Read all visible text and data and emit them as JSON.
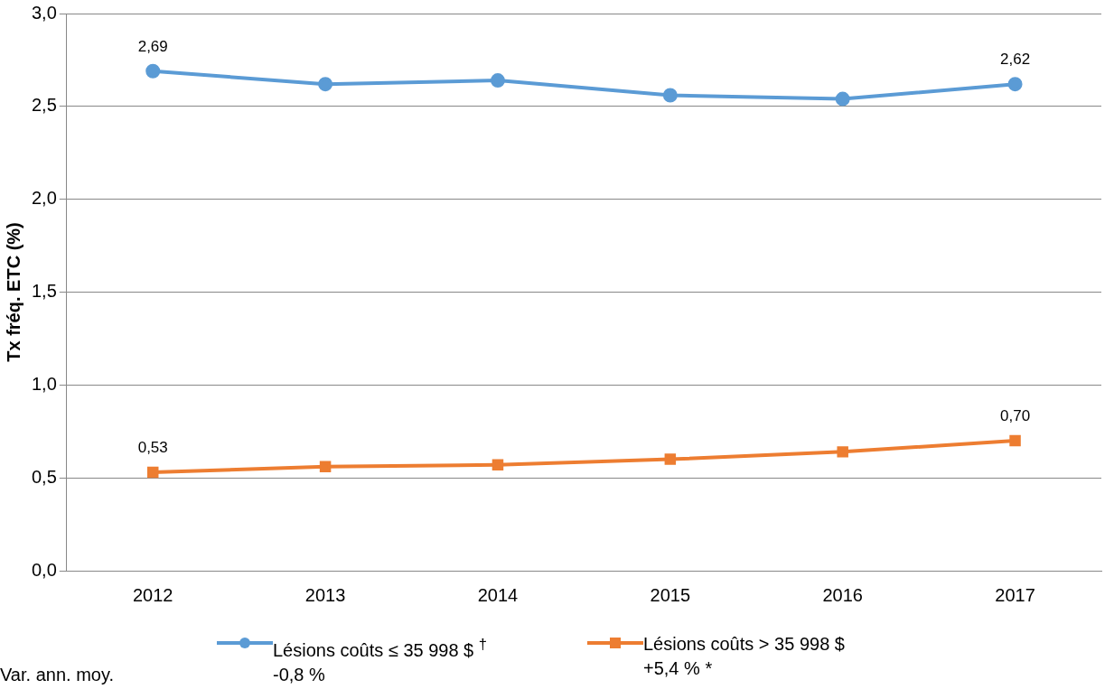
{
  "chart_data": {
    "type": "line",
    "ylabel": "Tx fréq. ETC (%)",
    "categories": [
      "2012",
      "2013",
      "2014",
      "2015",
      "2016",
      "2017"
    ],
    "series": [
      {
        "name": "Lésions coûts ≤ 35 998 $ $^{†}$\n-0,8 %",
        "color": "#5b9bd5",
        "marker": "circle",
        "values": [
          2.69,
          2.62,
          2.64,
          2.56,
          2.54,
          2.62
        ],
        "value_labels": [
          "2,69",
          null,
          null,
          null,
          null,
          "2,62"
        ]
      },
      {
        "name": "Lésions coûts > 35 998 $\n+5,4 % *",
        "color": "#ed7d31",
        "marker": "square",
        "values": [
          0.53,
          0.56,
          0.57,
          0.6,
          0.64,
          0.7
        ],
        "value_labels": [
          "0,53",
          null,
          null,
          null,
          null,
          "0,70"
        ]
      }
    ],
    "ylim": [
      0,
      3
    ],
    "yticks": [
      {
        "value": 0,
        "label": "0,0"
      },
      {
        "value": 0.5,
        "label": "0,5"
      },
      {
        "value": 1,
        "label": "1,0"
      },
      {
        "value": 1.5,
        "label": "1,5"
      },
      {
        "value": 2,
        "label": "2,0"
      },
      {
        "value": 2.5,
        "label": "2,5"
      },
      {
        "value": 3,
        "label": "3,0"
      }
    ],
    "grid": "y",
    "legend": "bottom",
    "annotations": [
      "Var. ann. moy."
    ]
  }
}
